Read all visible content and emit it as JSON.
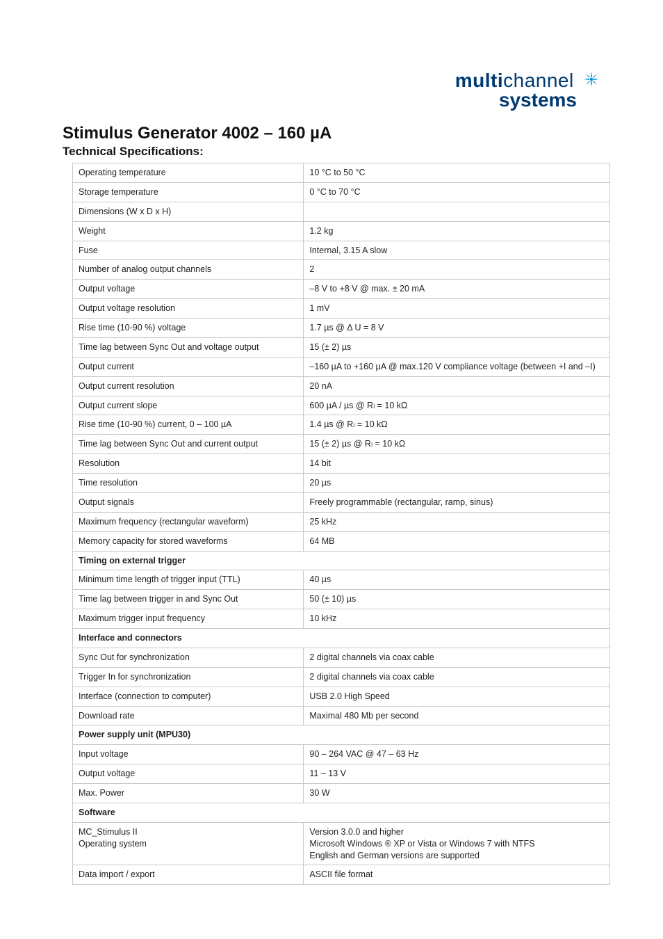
{
  "logo": {
    "part1": "multi",
    "part2": "channel",
    "part3": "systems",
    "color_text": "#003a70",
    "color_star": "#0093d6"
  },
  "title": "Stimulus Generator 4002 – 160 µA",
  "subtitle": "Technical Specifications:",
  "rows": [
    {
      "type": "kv",
      "label": "Operating temperature",
      "value": "10 °C to 50 °C"
    },
    {
      "type": "kv",
      "label": "Storage temperature",
      "value": " 0 °C to 70 °C"
    },
    {
      "type": "kv",
      "label": "Dimensions (W x D x H)",
      "value": ""
    },
    {
      "type": "kv",
      "label": "Weight",
      "value": "1.2 kg"
    },
    {
      "type": "kv",
      "label": "Fuse",
      "value": "Internal, 3.15 A slow"
    },
    {
      "type": "kv",
      "label": "Number of analog output channels",
      "value": "2"
    },
    {
      "type": "kv",
      "label": "Output voltage",
      "value": "–8 V to +8 V @ max. ± 20 mA"
    },
    {
      "type": "kv",
      "label": "Output voltage resolution",
      "value": "1 mV"
    },
    {
      "type": "kv",
      "label": "Rise time (10-90 %) voltage",
      "value": "1.7 µs @ Δ U = 8 V"
    },
    {
      "type": "kv",
      "label": "Time lag between Sync Out and voltage output",
      "value": " 15 (± 2) µs"
    },
    {
      "type": "kv",
      "label": "Output current",
      "value": "–160 µA to +160 µA @ max.120 V compliance voltage (between +I and –I)"
    },
    {
      "type": "kv",
      "label": "Output current resolution",
      "value": "20 nA"
    },
    {
      "type": "kv",
      "label": "Output current slope",
      "value": "600 µA / µs @ Rₗ =  10 kΩ"
    },
    {
      "type": "kv",
      "label": "Rise time (10-90 %) current, 0 – 100 µA",
      "value": "1.4 µs @ Rₗ =  10 kΩ"
    },
    {
      "type": "kv",
      "label": "Time lag between Sync Out and current output",
      "value": "15 (± 2) µs @ Rₗ =  10 kΩ"
    },
    {
      "type": "kv",
      "label": "Resolution",
      "value": "14 bit"
    },
    {
      "type": "kv",
      "label": "Time resolution",
      "value": "20 µs"
    },
    {
      "type": "kv",
      "label": "Output signals",
      "value": "Freely programmable (rectangular, ramp, sinus)"
    },
    {
      "type": "kv",
      "label": "Maximum frequency (rectangular waveform)",
      "value": "25 kHz"
    },
    {
      "type": "kv",
      "label": "Memory capacity for stored waveforms",
      "value": "64 MB"
    },
    {
      "type": "section",
      "label": "Timing on external trigger"
    },
    {
      "type": "kv",
      "label": "Minimum time length of trigger input (TTL)",
      "value": "40 µs"
    },
    {
      "type": "kv",
      "label": "Time lag between trigger in and Sync Out",
      "value": "50 (± 10) µs"
    },
    {
      "type": "kv",
      "label": "Maximum trigger input frequency",
      "value": "10 kHz"
    },
    {
      "type": "section",
      "label": "Interface and connectors"
    },
    {
      "type": "kv",
      "label": "Sync Out for synchronization",
      "value": "2 digital channels via coax cable"
    },
    {
      "type": "kv",
      "label": "Trigger In for synchronization",
      "value": "2 digital channels via coax cable"
    },
    {
      "type": "kv",
      "label": "Interface (connection to computer)",
      "value": "USB 2.0 High Speed"
    },
    {
      "type": "kv",
      "label": "Download rate",
      "value": "Maximal 480 Mb per second"
    },
    {
      "type": "section",
      "label": "Power supply unit (MPU30)"
    },
    {
      "type": "kv",
      "label": "Input voltage",
      "value": "90 – 264 VAC @ 47 – 63 Hz"
    },
    {
      "type": "kv",
      "label": "Output voltage",
      "value": "11 – 13 V"
    },
    {
      "type": "kv",
      "label": "Max. Power",
      "value": "30 W"
    },
    {
      "type": "section",
      "label": "Software"
    },
    {
      "type": "kv-multi",
      "labelLines": [
        "MC_Stimulus II",
        "Operating system"
      ],
      "valueLines": [
        "Version 3.0.0 and higher",
        "Microsoft Windows ® XP or Vista or Windows 7 with NTFS",
        "English and German versions are supported"
      ]
    },
    {
      "type": "kv",
      "label": "Data import / export",
      "value": "ASCII file format"
    }
  ]
}
